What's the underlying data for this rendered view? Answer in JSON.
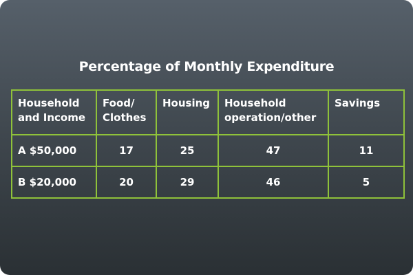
{
  "title": "Percentage of Monthly Expenditure",
  "chart_data": {
    "type": "table",
    "title": "Percentage of Monthly Expenditure",
    "columns": [
      "Household and Income",
      "Food/ Clothes",
      "Housing",
      "Household operation/other",
      "Savings"
    ],
    "rows": [
      {
        "household": "A $50,000",
        "values": [
          17,
          25,
          47,
          11
        ]
      },
      {
        "household": "B $20,000",
        "values": [
          20,
          29,
          46,
          5
        ]
      }
    ]
  },
  "colors": {
    "grid_lines": "#8fc23a",
    "background_top": "#56606a",
    "background_bottom": "#2a3034",
    "text": "#ffffff"
  }
}
